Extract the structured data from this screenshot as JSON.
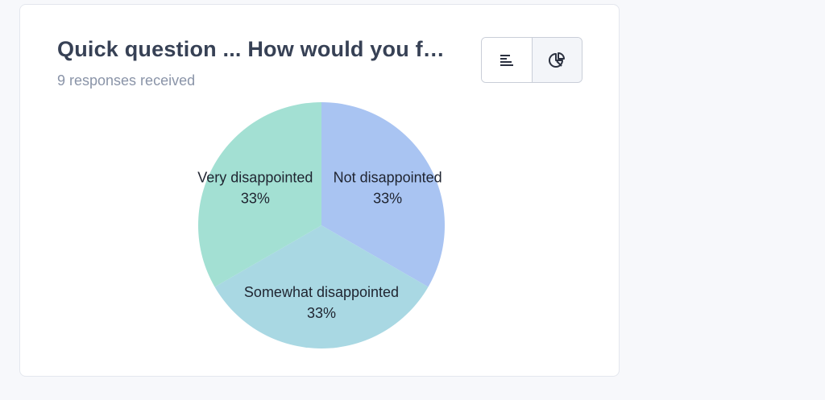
{
  "card": {
    "title": "Quick question ... How would you f…",
    "subtitle": "9 responses received"
  },
  "view_toggle": {
    "options": [
      {
        "icon": "bar-list-icon",
        "active": false
      },
      {
        "icon": "pie-chart-icon",
        "active": true
      }
    ]
  },
  "colors": {
    "not_disappointed": "#a9c4f2",
    "somewhat_disappointed": "#a9d8e3",
    "very_disappointed": "#a3e0d3"
  },
  "chart_data": {
    "type": "pie",
    "categories": [
      "Not disappointed",
      "Somewhat disappointed",
      "Very disappointed"
    ],
    "values": [
      33,
      33,
      33
    ],
    "value_labels": [
      "33%",
      "33%",
      "33%"
    ],
    "colors": [
      "#a9c4f2",
      "#a9d8e3",
      "#a3e0d3"
    ]
  }
}
